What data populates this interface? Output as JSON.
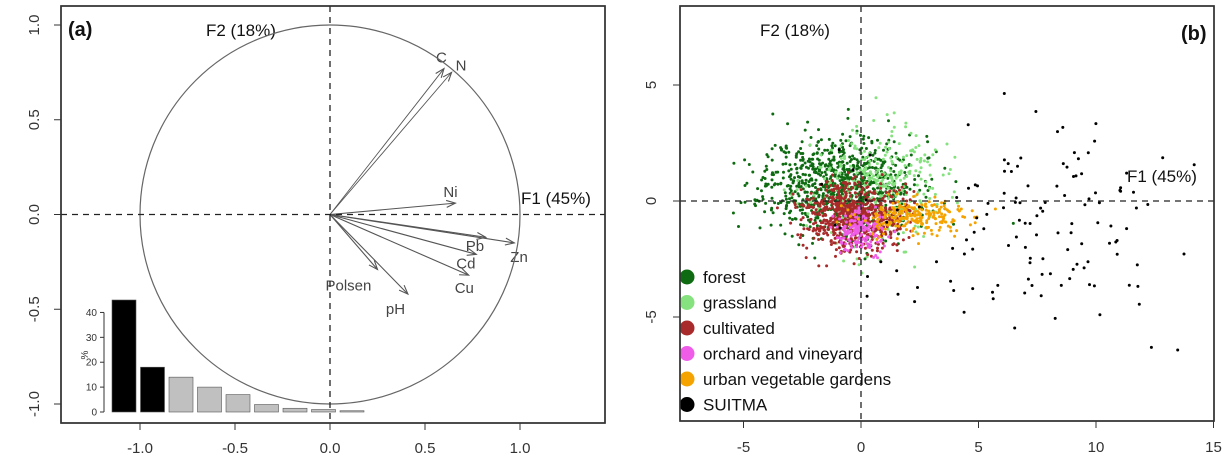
{
  "chart_data": [
    {
      "type": "pca-correlation-circle",
      "panel_label": "(a)",
      "xlim": [
        -1.05,
        1.05
      ],
      "ylim": [
        -1.05,
        1.05
      ],
      "x_ticks": [
        -1.0,
        -0.5,
        0.0,
        0.5,
        1.0
      ],
      "x_tick_labels": [
        "-1.0",
        "-0.5",
        "0.0",
        "0.5",
        "1.0"
      ],
      "y_ticks": [
        1.0,
        0.5,
        0.0,
        -0.5,
        -1.0
      ],
      "y_tick_labels": [
        "1.0",
        "0.5",
        "0.0",
        "-0.5",
        "-1.0"
      ],
      "axis_f1_label": "F1 (45%)",
      "axis_f2_label": "F2  (18%)",
      "colors": {
        "arrow": "#555555",
        "axis": "#222222",
        "circle": "#666666"
      },
      "vectors": [
        {
          "name": "C",
          "x": 0.6,
          "y": 0.77
        },
        {
          "name": "N",
          "x": 0.64,
          "y": 0.75
        },
        {
          "name": "Ni",
          "x": 0.66,
          "y": 0.06
        },
        {
          "name": "Pb",
          "x": 0.82,
          "y": -0.12
        },
        {
          "name": "Zn",
          "x": 0.97,
          "y": -0.15
        },
        {
          "name": "Cd",
          "x": 0.77,
          "y": -0.21
        },
        {
          "name": "Cu",
          "x": 0.73,
          "y": -0.32
        },
        {
          "name": "Polsen",
          "x": 0.25,
          "y": -0.29
        },
        {
          "name": "pH",
          "x": 0.41,
          "y": -0.42
        }
      ],
      "scree": {
        "ylabel": "%",
        "y_ticks": [
          0,
          10,
          20,
          30,
          40
        ],
        "ylim": [
          0,
          45
        ],
        "values": [
          45,
          18,
          14,
          10,
          7,
          3,
          1.5,
          1,
          0.5
        ],
        "highlight_count": 2,
        "colors": {
          "highlight": "#000000",
          "other": "#c0c0c0"
        }
      }
    },
    {
      "type": "scatter",
      "panel_label": "(b)",
      "xlim": [
        -8.5,
        15.5
      ],
      "ylim": [
        -10.5,
        7.8
      ],
      "x_ticks": [
        -5,
        0,
        5,
        10,
        15
      ],
      "x_tick_labels": [
        "-5",
        "0",
        "5",
        "10",
        "15"
      ],
      "y_ticks": [
        5,
        0,
        -5
      ],
      "y_tick_labels": [
        "5",
        "0",
        "-5"
      ],
      "axis_f1_label": "F1 (45%)",
      "axis_f2_label": "F2  (18%)",
      "legend_position": "bottom-left",
      "series": [
        {
          "name": "forest",
          "color": "#0f6b12",
          "n": 900,
          "center": [
            -0.9,
            0.7
          ],
          "spread": [
            1.6,
            1.05
          ],
          "seed": 11
        },
        {
          "name": "grassland",
          "color": "#86e27f",
          "n": 330,
          "center": [
            0.7,
            0.6
          ],
          "spread": [
            1.35,
            1.25
          ],
          "seed": 23
        },
        {
          "name": "cultivated",
          "color": "#a92a2a",
          "n": 650,
          "center": [
            -0.3,
            -0.6
          ],
          "spread": [
            1.05,
            0.75
          ],
          "seed": 37
        },
        {
          "name": "orchard and vineyard",
          "color": "#ef5ce8",
          "n": 160,
          "center": [
            0.0,
            -1.3
          ],
          "spread": [
            0.55,
            0.45
          ],
          "seed": 41
        },
        {
          "name": "urban vegetable gardens",
          "color": "#f5a300",
          "n": 230,
          "center": [
            2.3,
            -0.7
          ],
          "spread": [
            1.25,
            0.4
          ],
          "seed": 53
        },
        {
          "name": "SUITMA",
          "color": "#000000",
          "n": 130,
          "center": [
            7.8,
            -1.2
          ],
          "spread": [
            2.3,
            2.2
          ],
          "seed": 67
        }
      ]
    }
  ]
}
